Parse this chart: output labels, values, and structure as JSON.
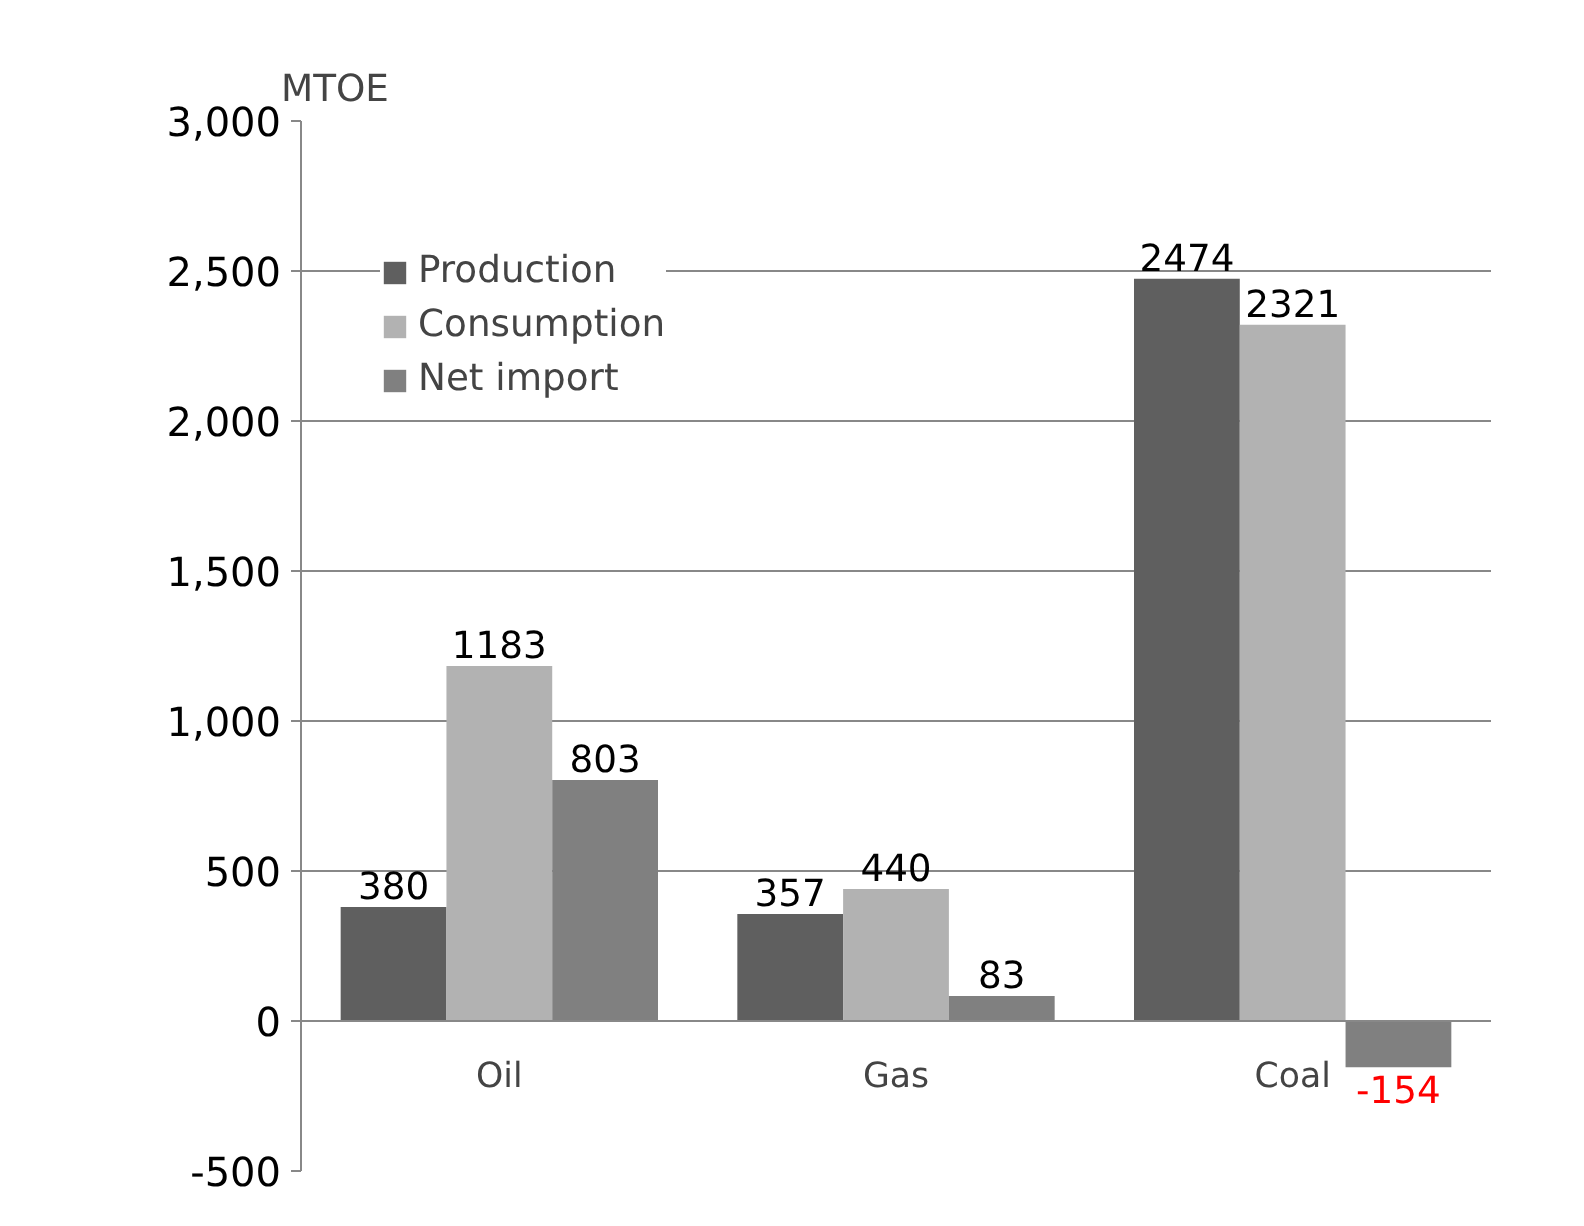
{
  "chart_data": {
    "type": "bar",
    "ylabel": "MTOE",
    "categories": [
      "Oil",
      "Gas",
      "Coal"
    ],
    "series": [
      {
        "name": "Production",
        "color": "#5f5f5f",
        "values": [
          380,
          357,
          2474
        ]
      },
      {
        "name": "Consumption",
        "color": "#b2b2b2",
        "values": [
          1183,
          440,
          2321
        ]
      },
      {
        "name": "Net import",
        "color": "#808080",
        "values": [
          803,
          83,
          -154
        ]
      }
    ],
    "ylim": [
      -500,
      3000
    ],
    "yticks": [
      {
        "value": -500,
        "label": "-500"
      },
      0,
      {
        "value": 500,
        "label": "500"
      },
      {
        "value": 1000,
        "label": "1,000"
      },
      {
        "value": 1500,
        "label": "1,500"
      },
      {
        "value": 2000,
        "label": "2,000"
      },
      {
        "value": 2500,
        "label": "2,500"
      },
      {
        "value": 3000,
        "label": "3,000"
      }
    ],
    "grid": "y",
    "legend": "top left",
    "data_labels": true
  }
}
